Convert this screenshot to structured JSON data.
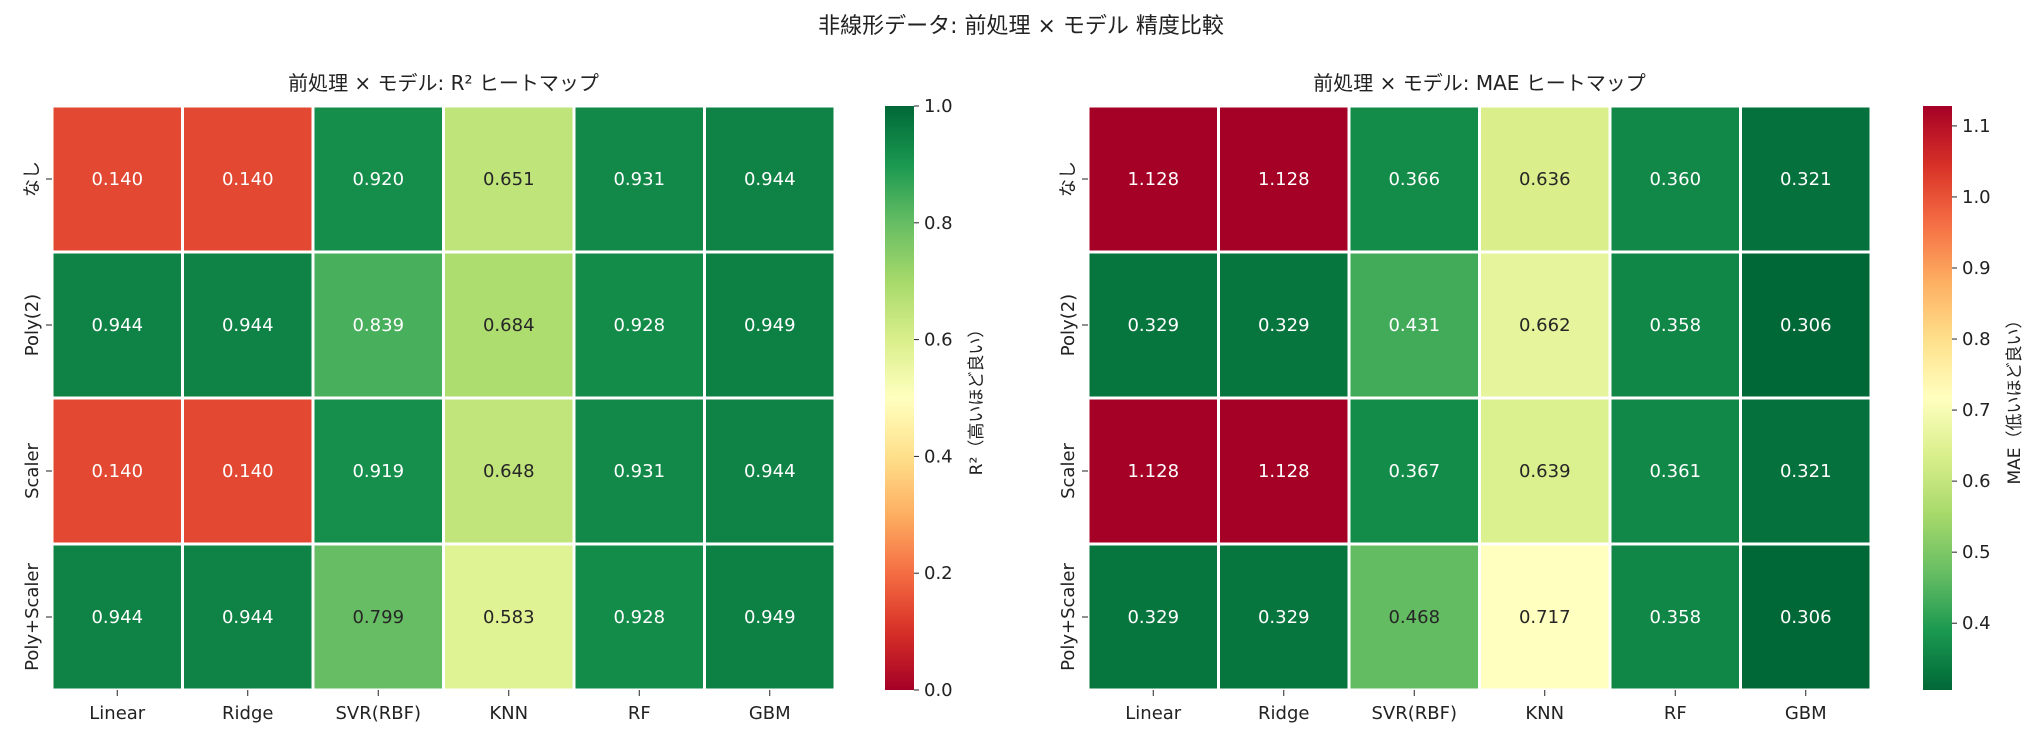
{
  "suptitle": "非線形データ: 前処理 × モデル 精度比較",
  "chart_data": [
    {
      "type": "heatmap",
      "title": "前処理 × モデル: R² ヒートマップ",
      "colorbar_label": "R²（高いほど良い）",
      "colormap": "RdYlGn",
      "vmin": 0.0,
      "vmax": 1.0,
      "colorbar_ticks": [
        "0.0",
        "0.2",
        "0.4",
        "0.6",
        "0.8",
        "1.0"
      ],
      "rows": [
        "なし",
        "Poly(2)",
        "Scaler",
        "Poly+Scaler"
      ],
      "columns": [
        "Linear",
        "Ridge",
        "SVR(RBF)",
        "KNN",
        "RF",
        "GBM"
      ],
      "values": [
        [
          0.14,
          0.14,
          0.92,
          0.651,
          0.931,
          0.944
        ],
        [
          0.944,
          0.944,
          0.839,
          0.684,
          0.928,
          0.949
        ],
        [
          0.14,
          0.14,
          0.919,
          0.648,
          0.931,
          0.944
        ],
        [
          0.944,
          0.944,
          0.799,
          0.583,
          0.928,
          0.949
        ]
      ]
    },
    {
      "type": "heatmap",
      "title": "前処理 × モデル: MAE ヒートマップ",
      "colorbar_label": "MAE（低いほど良い）",
      "colormap": "RdYlGn_r",
      "vmin": 0.306,
      "vmax": 1.128,
      "colorbar_ticks": [
        "0.4",
        "0.5",
        "0.6",
        "0.7",
        "0.8",
        "0.9",
        "1.0",
        "1.1"
      ],
      "rows": [
        "なし",
        "Poly(2)",
        "Scaler",
        "Poly+Scaler"
      ],
      "columns": [
        "Linear",
        "Ridge",
        "SVR(RBF)",
        "KNN",
        "RF",
        "GBM"
      ],
      "values": [
        [
          1.128,
          1.128,
          0.366,
          0.636,
          0.36,
          0.321
        ],
        [
          0.329,
          0.329,
          0.431,
          0.662,
          0.358,
          0.306
        ],
        [
          1.128,
          1.128,
          0.367,
          0.639,
          0.361,
          0.321
        ],
        [
          0.329,
          0.329,
          0.468,
          0.717,
          0.358,
          0.306
        ]
      ]
    }
  ]
}
